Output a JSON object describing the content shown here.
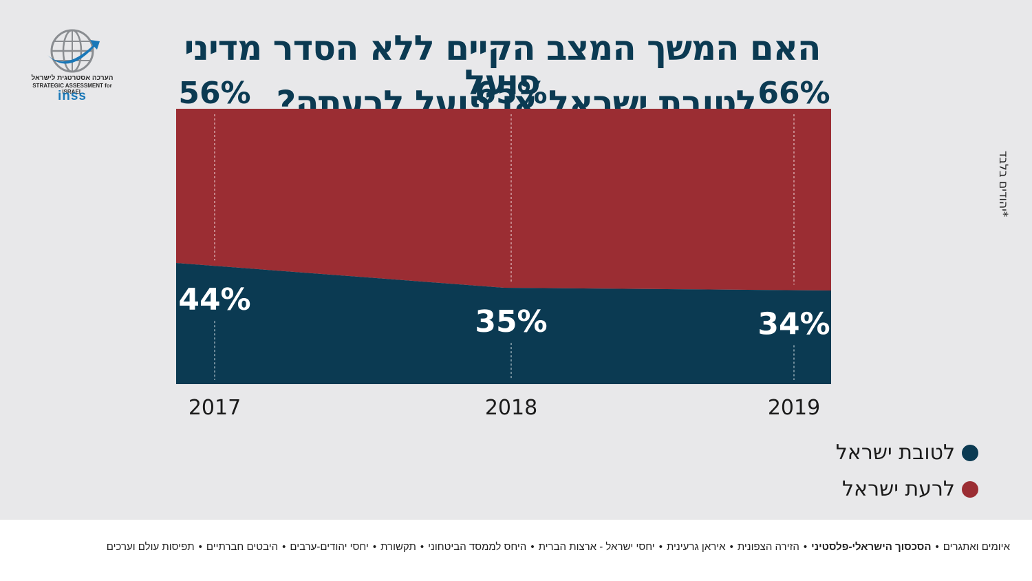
{
  "header": {
    "title_line1": "האם המשך המצב הקיים ללא הסדר מדיני פועל",
    "title_line2": "לטובת ישראל או פועל לרעתה?"
  },
  "logo": {
    "hebrew": "הערכה אסטרטגית לישראל",
    "english": "STRATEGIC ASSESSMENT for ISRAEL",
    "brand": "inss"
  },
  "side_note": "*יהודים בלבד",
  "colors": {
    "good": "#0b3a52",
    "bad": "#9b2d33",
    "title": "#0b3a52"
  },
  "chart_data": {
    "type": "area",
    "stacked": true,
    "categories": [
      "2017",
      "2018",
      "2019"
    ],
    "series": [
      {
        "name": "לטובת ישראל",
        "values": [
          44,
          35,
          34
        ],
        "labels": [
          "44%",
          "35%",
          "34%"
        ],
        "color": "#0b3a52"
      },
      {
        "name": "לרעת ישראל",
        "values": [
          56,
          65,
          66
        ],
        "labels": [
          "56%",
          "65%",
          "66%"
        ],
        "color": "#9b2d33"
      }
    ],
    "ylim": [
      0,
      100
    ],
    "legend": "bottom-right"
  },
  "footer": {
    "topics": [
      "איומים ואתגרים",
      "הסכסוך הישראלי-פלסטיני",
      "הזירה הצפונית",
      "איראן גרעינית",
      "יחסי ישראל - ארצות הברית",
      "היחס לממסד הביטחוני",
      "תקשורת",
      "יחסי יהודים-ערבים",
      "היבטים חברתיים",
      "תפיסות עולם וערכים"
    ],
    "bold_index": 1,
    "separator": "•"
  }
}
